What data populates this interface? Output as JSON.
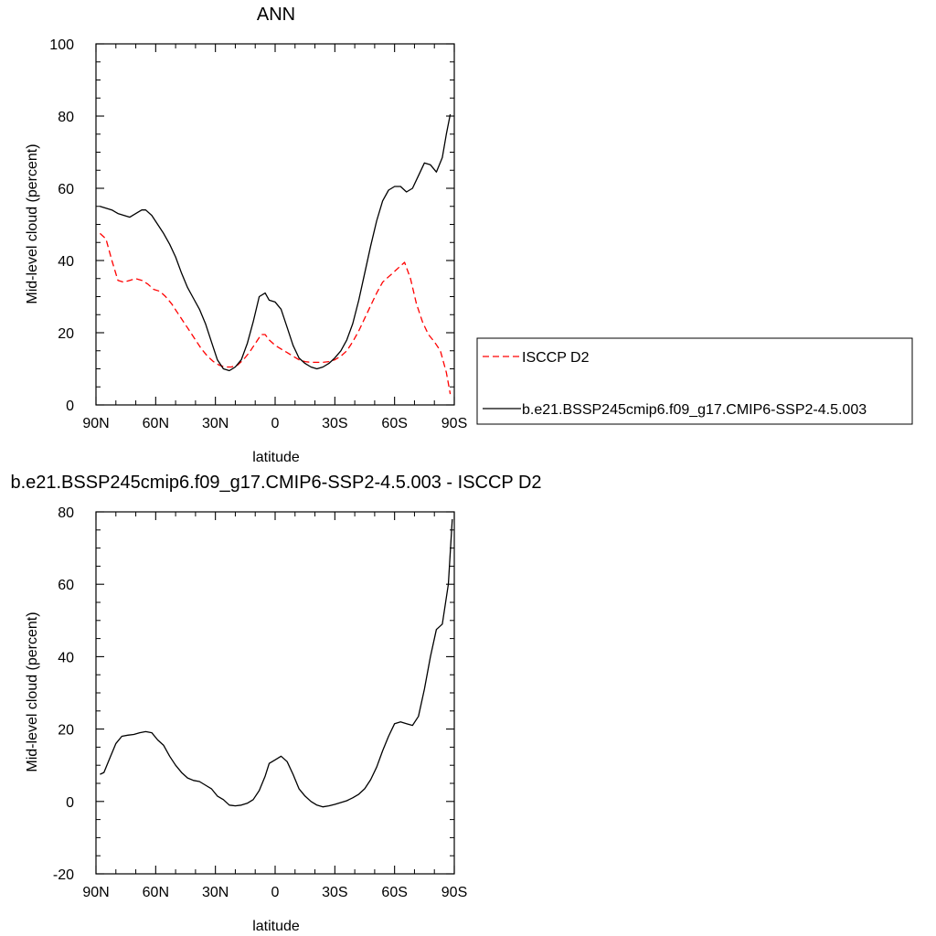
{
  "chart_data": [
    {
      "type": "line",
      "title": "ANN",
      "xlabel": "latitude",
      "ylabel": "Mid-level cloud (percent)",
      "xlim": [
        90,
        -90
      ],
      "ylim": [
        0,
        100
      ],
      "xticks": [
        {
          "value": 90,
          "label": "90N"
        },
        {
          "value": 60,
          "label": "60N"
        },
        {
          "value": 30,
          "label": "30N"
        },
        {
          "value": 0,
          "label": "0"
        },
        {
          "value": -30,
          "label": "30S"
        },
        {
          "value": -60,
          "label": "60S"
        },
        {
          "value": -90,
          "label": "90S"
        }
      ],
      "yticks": [
        0,
        20,
        40,
        60,
        80,
        100
      ],
      "legend": "right",
      "series": [
        {
          "name": "ISCCP D2",
          "color": "#ff0000",
          "dash": "dashed",
          "points": [
            [
              88,
              47.5
            ],
            [
              85,
              46
            ],
            [
              82,
              40
            ],
            [
              79,
              34.5
            ],
            [
              76,
              34
            ],
            [
              73,
              34.5
            ],
            [
              70,
              35
            ],
            [
              67,
              34.5
            ],
            [
              64,
              33.5
            ],
            [
              61,
              32
            ],
            [
              58,
              31.5
            ],
            [
              55,
              30
            ],
            [
              52,
              28
            ],
            [
              49,
              25.5
            ],
            [
              46,
              23
            ],
            [
              43,
              20.5
            ],
            [
              40,
              18
            ],
            [
              37,
              15.5
            ],
            [
              34,
              13.5
            ],
            [
              31,
              12
            ],
            [
              28,
              11
            ],
            [
              25,
              10.5
            ],
            [
              22,
              10.5
            ],
            [
              19,
              11
            ],
            [
              16,
              12.5
            ],
            [
              13,
              14.5
            ],
            [
              10,
              17
            ],
            [
              7,
              19.5
            ],
            [
              5,
              19.5
            ],
            [
              3,
              18
            ],
            [
              0,
              16.5
            ],
            [
              -3,
              15.5
            ],
            [
              -6,
              14.5
            ],
            [
              -9,
              13.5
            ],
            [
              -12,
              12.5
            ],
            [
              -15,
              12
            ],
            [
              -18,
              11.8
            ],
            [
              -21,
              11.8
            ],
            [
              -24,
              11.8
            ],
            [
              -27,
              12
            ],
            [
              -30,
              12.5
            ],
            [
              -33,
              13.5
            ],
            [
              -36,
              15
            ],
            [
              -39,
              17.5
            ],
            [
              -42,
              20.5
            ],
            [
              -45,
              24
            ],
            [
              -48,
              27.5
            ],
            [
              -51,
              31
            ],
            [
              -54,
              34
            ],
            [
              -57,
              35.5
            ],
            [
              -60,
              37
            ],
            [
              -63,
              38.5
            ],
            [
              -65,
              39.5
            ],
            [
              -68,
              35
            ],
            [
              -71,
              28
            ],
            [
              -74,
              23
            ],
            [
              -77,
              19.5
            ],
            [
              -80,
              17.5
            ],
            [
              -83,
              15
            ],
            [
              -86,
              9
            ],
            [
              -88,
              3
            ]
          ]
        },
        {
          "name": "b.e21.BSSP245cmip6.f09_g17.CMIP6-SSP2-4.5.003",
          "color": "#000000",
          "dash": "solid",
          "points": [
            [
              88,
              55
            ],
            [
              85,
              54.5
            ],
            [
              82,
              54
            ],
            [
              79,
              53
            ],
            [
              76,
              52.5
            ],
            [
              73,
              52
            ],
            [
              70,
              53
            ],
            [
              67,
              54
            ],
            [
              65,
              54
            ],
            [
              62,
              52.5
            ],
            [
              59,
              50
            ],
            [
              56,
              47.5
            ],
            [
              53,
              44.5
            ],
            [
              50,
              41
            ],
            [
              47,
              36.5
            ],
            [
              44,
              32.5
            ],
            [
              41,
              29.5
            ],
            [
              38,
              26.5
            ],
            [
              35,
              22.5
            ],
            [
              32,
              17.5
            ],
            [
              29,
              12.5
            ],
            [
              26,
              10
            ],
            [
              23,
              9.5
            ],
            [
              20,
              10.5
            ],
            [
              17,
              12.5
            ],
            [
              14,
              17
            ],
            [
              11,
              23
            ],
            [
              8,
              30
            ],
            [
              5,
              31
            ],
            [
              3,
              29
            ],
            [
              0,
              28.5
            ],
            [
              -3,
              26.5
            ],
            [
              -6,
              21.5
            ],
            [
              -9,
              16.5
            ],
            [
              -12,
              13
            ],
            [
              -15,
              11.5
            ],
            [
              -18,
              10.5
            ],
            [
              -21,
              10
            ],
            [
              -24,
              10.5
            ],
            [
              -27,
              11.5
            ],
            [
              -30,
              13
            ],
            [
              -33,
              15
            ],
            [
              -36,
              18
            ],
            [
              -39,
              22.5
            ],
            [
              -42,
              29
            ],
            [
              -45,
              36.5
            ],
            [
              -48,
              44
            ],
            [
              -51,
              51
            ],
            [
              -54,
              56.5
            ],
            [
              -57,
              59.5
            ],
            [
              -60,
              60.5
            ],
            [
              -63,
              60.5
            ],
            [
              -66,
              59
            ],
            [
              -69,
              60
            ],
            [
              -72,
              63.5
            ],
            [
              -75,
              67
            ],
            [
              -78,
              66.5
            ],
            [
              -81,
              64.5
            ],
            [
              -84,
              68.5
            ],
            [
              -86,
              75
            ],
            [
              -88,
              80.5
            ]
          ]
        }
      ]
    },
    {
      "type": "line",
      "title": "b.e21.BSSP245cmip6.f09_g17.CMIP6-SSP2-4.5.003 - ISCCP D2",
      "xlabel": "latitude",
      "ylabel": "Mid-level cloud (percent)",
      "xlim": [
        90,
        -90
      ],
      "ylim": [
        -20,
        80
      ],
      "xticks": [
        {
          "value": 90,
          "label": "90N"
        },
        {
          "value": 60,
          "label": "60N"
        },
        {
          "value": 30,
          "label": "30N"
        },
        {
          "value": 0,
          "label": "0"
        },
        {
          "value": -30,
          "label": "30S"
        },
        {
          "value": -60,
          "label": "60S"
        },
        {
          "value": -90,
          "label": "90S"
        }
      ],
      "yticks": [
        -20,
        0,
        20,
        40,
        60,
        80
      ],
      "series": [
        {
          "color": "#000000",
          "dash": "solid",
          "points": [
            [
              88,
              7.5
            ],
            [
              86,
              8
            ],
            [
              83,
              12
            ],
            [
              80,
              16
            ],
            [
              77,
              18
            ],
            [
              74,
              18.3
            ],
            [
              71,
              18.5
            ],
            [
              68,
              19
            ],
            [
              65,
              19.3
            ],
            [
              62,
              19
            ],
            [
              59,
              17
            ],
            [
              56,
              15.5
            ],
            [
              53,
              12.5
            ],
            [
              50,
              10
            ],
            [
              47,
              8
            ],
            [
              44,
              6.5
            ],
            [
              41,
              5.8
            ],
            [
              38,
              5.5
            ],
            [
              35,
              4.5
            ],
            [
              32,
              3.5
            ],
            [
              29,
              1.5
            ],
            [
              26,
              0.5
            ],
            [
              23,
              -1
            ],
            [
              20,
              -1.2
            ],
            [
              17,
              -1
            ],
            [
              14,
              -0.5
            ],
            [
              11,
              0.5
            ],
            [
              8,
              3
            ],
            [
              5,
              7
            ],
            [
              3,
              10.5
            ],
            [
              0,
              11.5
            ],
            [
              -3,
              12.5
            ],
            [
              -6,
              11
            ],
            [
              -9,
              7.5
            ],
            [
              -12,
              3.5
            ],
            [
              -15,
              1.5
            ],
            [
              -18,
              0
            ],
            [
              -21,
              -1
            ],
            [
              -24,
              -1.5
            ],
            [
              -27,
              -1.2
            ],
            [
              -30,
              -0.8
            ],
            [
              -33,
              -0.3
            ],
            [
              -36,
              0.2
            ],
            [
              -39,
              1
            ],
            [
              -42,
              2
            ],
            [
              -45,
              3.5
            ],
            [
              -48,
              6
            ],
            [
              -51,
              9.5
            ],
            [
              -54,
              14
            ],
            [
              -57,
              18
            ],
            [
              -60,
              21.5
            ],
            [
              -63,
              22
            ],
            [
              -66,
              21.5
            ],
            [
              -69,
              21
            ],
            [
              -72,
              23.5
            ],
            [
              -75,
              31
            ],
            [
              -78,
              40
            ],
            [
              -81,
              47.5
            ],
            [
              -84,
              49
            ],
            [
              -87,
              60
            ],
            [
              -89,
              78
            ]
          ]
        }
      ]
    }
  ]
}
